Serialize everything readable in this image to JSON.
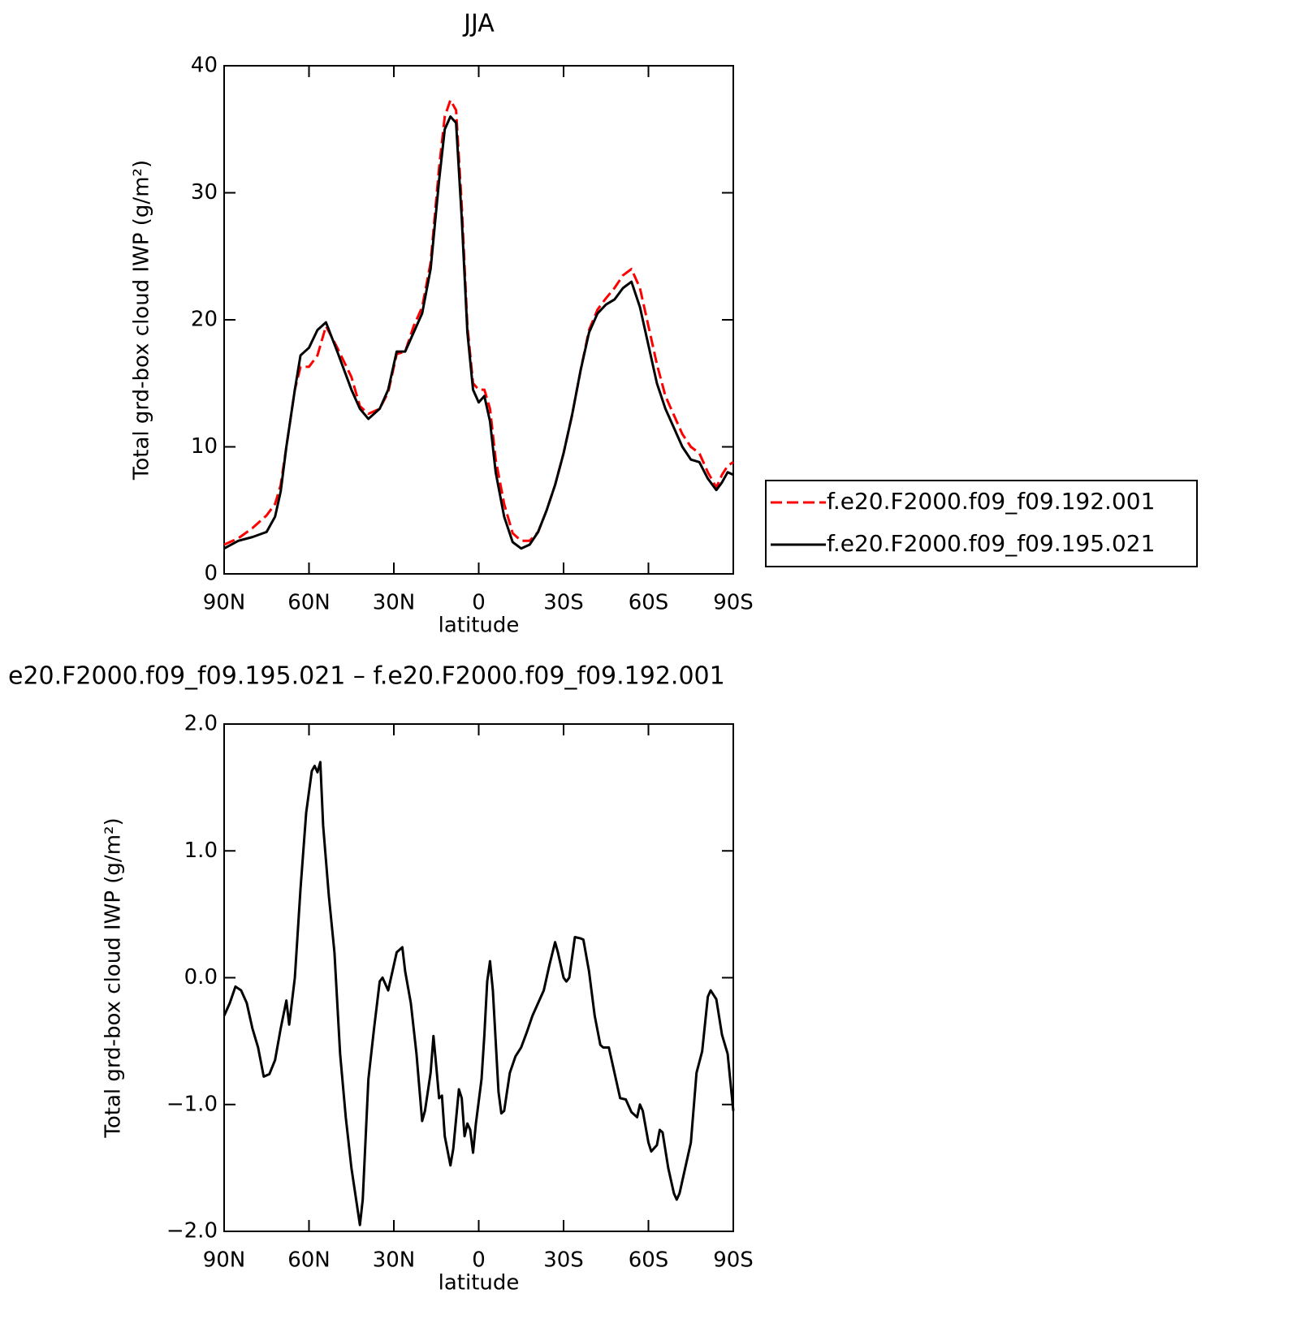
{
  "chart_data": [
    {
      "type": "line",
      "title": "JJA",
      "xlabel": "latitude",
      "ylabel": "Total grd-box cloud IWP (g/m²)",
      "xlim": [
        90,
        -90
      ],
      "ylim": [
        0,
        40
      ],
      "xticks": [
        {
          "value": 90,
          "label": "90N"
        },
        {
          "value": 60,
          "label": "60N"
        },
        {
          "value": 30,
          "label": "30N"
        },
        0,
        {
          "value": -30,
          "label": "30S"
        },
        {
          "value": -60,
          "label": "60S"
        },
        {
          "value": -90,
          "label": "90S"
        }
      ],
      "yticks": [
        0,
        10,
        20,
        30,
        40
      ],
      "legend": "right",
      "x": [
        90,
        85,
        80,
        75,
        72,
        70,
        68,
        65,
        63,
        60,
        57,
        54,
        50,
        45,
        42,
        39,
        35,
        32,
        29,
        26,
        23,
        20,
        17,
        14,
        12,
        10,
        8,
        6,
        4,
        2,
        0,
        -2,
        -4,
        -6,
        -9,
        -12,
        -15,
        -18,
        -21,
        -24,
        -27,
        -30,
        -33,
        -36,
        -39,
        -42,
        -45,
        -48,
        -51,
        -54,
        -57,
        -60,
        -63,
        -66,
        -69,
        -72,
        -75,
        -78,
        -81,
        -84,
        -86,
        -88,
        -90
      ],
      "series": [
        {
          "name": "f.e20.F2000.f09_f09.192.001",
          "color": "#ff0000",
          "dash": true,
          "values": [
            2.3,
            2.8,
            3.6,
            4.6,
            5.5,
            7,
            10,
            14.5,
            16.3,
            16.3,
            17.2,
            19.5,
            17.8,
            15.5,
            13.2,
            12.6,
            13,
            14.3,
            17.3,
            17.5,
            19.5,
            21,
            24.5,
            32,
            36,
            37.3,
            36.5,
            29,
            19.5,
            15,
            14.5,
            14.5,
            13,
            9,
            5.5,
            3.2,
            2.6,
            2.6,
            3.3,
            5,
            7,
            9.5,
            12.5,
            16,
            19.2,
            20.8,
            21.7,
            22.5,
            23.5,
            24,
            22.5,
            19.5,
            16.5,
            14,
            12.5,
            11,
            10,
            9.5,
            8,
            6.8,
            7.8,
            8.5,
            8.8
          ]
        },
        {
          "name": "f.e20.F2000.f09_f09.195.021",
          "color": "#000000",
          "dash": false,
          "values": [
            2.0,
            2.6,
            2.9,
            3.3,
            4.5,
            6.5,
            10,
            14.5,
            17.2,
            17.8,
            19.2,
            19.8,
            17.5,
            14.5,
            13,
            12.2,
            13,
            14.5,
            17.5,
            17.5,
            19,
            20.5,
            24,
            31,
            35,
            36,
            35.5,
            28,
            19,
            14.5,
            13.5,
            14,
            12,
            8,
            4.5,
            2.5,
            2.0,
            2.3,
            3.3,
            5,
            7,
            9.5,
            12.5,
            16,
            19,
            20.5,
            21.2,
            21.6,
            22.5,
            23,
            21,
            18,
            15,
            13,
            11.5,
            10,
            9,
            8.8,
            7.5,
            6.6,
            7.2,
            8,
            7.8
          ]
        }
      ]
    },
    {
      "type": "line",
      "title": "e20.F2000.f09_f09.195.021 – f.e20.F2000.f09_f09.192.001",
      "xlabel": "latitude",
      "ylabel": "Total grd-box cloud IWP (g/m²)",
      "xlim": [
        90,
        -90
      ],
      "ylim": [
        -2,
        2
      ],
      "xticks": [
        {
          "value": 90,
          "label": "90N"
        },
        {
          "value": 60,
          "label": "60N"
        },
        {
          "value": 30,
          "label": "30N"
        },
        0,
        {
          "value": -30,
          "label": "30S"
        },
        {
          "value": -60,
          "label": "60S"
        },
        {
          "value": -90,
          "label": "90S"
        }
      ],
      "yticks": [
        {
          "value": -2,
          "label": "−2.0"
        },
        {
          "value": -1,
          "label": "−1.0"
        },
        {
          "value": 0,
          "label": "0.0"
        },
        {
          "value": 1,
          "label": "1.0"
        },
        {
          "value": 2,
          "label": "2.0"
        }
      ],
      "x": [
        90,
        88,
        86,
        84,
        82,
        80,
        78,
        76,
        74,
        72,
        70,
        68,
        67,
        65,
        63,
        61,
        59,
        58,
        57,
        56,
        55,
        53,
        51,
        49,
        47,
        45,
        43,
        42,
        41,
        39,
        37,
        35,
        34,
        32,
        31,
        29,
        27,
        26,
        24,
        22,
        20,
        19,
        17,
        16,
        15,
        14,
        13,
        12,
        10,
        9,
        7,
        6,
        5,
        4,
        3,
        2,
        1,
        -1,
        -2,
        -3,
        -4,
        -5,
        -7,
        -8,
        -9,
        -11,
        -13,
        -15,
        -17,
        -19,
        -21,
        -23,
        -25,
        -27,
        -28,
        -30,
        -31,
        -32,
        -34,
        -36,
        -37,
        -39,
        -41,
        -43,
        -44,
        -46,
        -48,
        -50,
        -52,
        -54,
        -56,
        -57,
        -58,
        -60,
        -61,
        -63,
        -64,
        -65,
        -67,
        -69,
        -70,
        -71,
        -73,
        -75,
        -77,
        -79,
        -81,
        -82,
        -84,
        -86,
        -88,
        -90
      ],
      "series": [
        {
          "color": "#000000",
          "dash": false,
          "values": [
            -0.3,
            -0.2,
            -0.07,
            -0.1,
            -0.2,
            -0.4,
            -0.55,
            -0.78,
            -0.76,
            -0.65,
            -0.4,
            -0.18,
            -0.37,
            0.0,
            0.7,
            1.3,
            1.63,
            1.67,
            1.62,
            1.7,
            1.2,
            0.65,
            0.2,
            -0.6,
            -1.1,
            -1.5,
            -1.8,
            -1.95,
            -1.75,
            -0.8,
            -0.4,
            -0.03,
            0.0,
            -0.1,
            0.0,
            0.2,
            0.24,
            0.05,
            -0.2,
            -0.6,
            -1.13,
            -1.05,
            -0.75,
            -0.46,
            -0.7,
            -0.95,
            -0.93,
            -1.25,
            -1.48,
            -1.35,
            -0.88,
            -0.95,
            -1.25,
            -1.15,
            -1.2,
            -1.38,
            -1.15,
            -0.8,
            -0.45,
            -0.03,
            0.13,
            -0.1,
            -0.9,
            -1.07,
            -1.05,
            -0.75,
            -0.62,
            -0.55,
            -0.43,
            -0.3,
            -0.2,
            -0.1,
            0.1,
            0.28,
            0.2,
            0.0,
            -0.03,
            0.0,
            0.32,
            0.31,
            0.3,
            0.05,
            -0.3,
            -0.53,
            -0.55,
            -0.55,
            -0.75,
            -0.95,
            -0.96,
            -1.06,
            -1.1,
            -1.0,
            -1.05,
            -1.3,
            -1.37,
            -1.32,
            -1.2,
            -1.22,
            -1.5,
            -1.7,
            -1.75,
            -1.7,
            -1.5,
            -1.3,
            -0.75,
            -0.58,
            -0.15,
            -0.1,
            -0.17,
            -0.45,
            -0.6,
            -1.05
          ]
        }
      ]
    }
  ]
}
